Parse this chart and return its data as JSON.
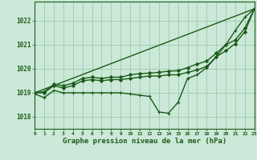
{
  "background_color": "#cce8d8",
  "grid_color": "#99ccaa",
  "line_color": "#1a5c1a",
  "marker_color": "#1a5c1a",
  "xlabel": "Graphe pression niveau de la mer (hPa)",
  "xlabel_fontsize": 6.5,
  "xlim": [
    0,
    23
  ],
  "ylim": [
    1017.5,
    1022.8
  ],
  "yticks": [
    1018,
    1019,
    1020,
    1021,
    1022
  ],
  "xticks": [
    0,
    1,
    2,
    3,
    4,
    5,
    6,
    7,
    8,
    9,
    10,
    11,
    12,
    13,
    14,
    15,
    16,
    17,
    18,
    19,
    20,
    21,
    22,
    23
  ],
  "series": [
    {
      "x": [
        0,
        1,
        2,
        3,
        4,
        5,
        6,
        7,
        8,
        9,
        10,
        11,
        12,
        13,
        14,
        15,
        16,
        17,
        18,
        19,
        20,
        21,
        22,
        23
      ],
      "y": [
        1018.95,
        1018.8,
        1019.1,
        1019.0,
        1019.0,
        1019.0,
        1019.0,
        1019.0,
        1019.0,
        1019.0,
        1018.95,
        1018.9,
        1018.85,
        1018.2,
        1018.15,
        1018.6,
        1019.6,
        1019.75,
        1020.05,
        1020.5,
        1021.0,
        1021.6,
        1022.15,
        1022.5
      ],
      "marker": "+",
      "markersize": 3.5,
      "linewidth": 1.0,
      "linestyle": "-"
    },
    {
      "x": [
        0,
        1,
        2,
        3,
        4,
        5,
        6,
        7,
        8,
        9,
        10,
        11,
        12,
        13,
        14,
        15,
        16,
        17,
        18,
        19,
        20,
        21,
        22,
        23
      ],
      "y": [
        1019.0,
        1019.0,
        1019.3,
        1019.2,
        1019.3,
        1019.5,
        1019.55,
        1019.5,
        1019.55,
        1019.55,
        1019.6,
        1019.65,
        1019.7,
        1019.7,
        1019.75,
        1019.75,
        1019.85,
        1019.95,
        1020.1,
        1020.5,
        1020.75,
        1021.05,
        1021.55,
        1022.5
      ],
      "marker": "D",
      "markersize": 2.0,
      "linewidth": 1.0,
      "linestyle": "-"
    },
    {
      "x": [
        0,
        1,
        2,
        3,
        4,
        5,
        6,
        7,
        8,
        9,
        10,
        11,
        12,
        13,
        14,
        15,
        16,
        17,
        18,
        19,
        20,
        21,
        22,
        23
      ],
      "y": [
        1019.0,
        1019.05,
        1019.35,
        1019.3,
        1019.4,
        1019.6,
        1019.65,
        1019.6,
        1019.65,
        1019.65,
        1019.75,
        1019.8,
        1019.82,
        1019.85,
        1019.9,
        1019.92,
        1020.05,
        1020.2,
        1020.32,
        1020.65,
        1021.0,
        1021.2,
        1021.7,
        1022.5
      ],
      "marker": "D",
      "markersize": 2.0,
      "linewidth": 1.0,
      "linestyle": "-"
    },
    {
      "x": [
        0,
        23
      ],
      "y": [
        1019.0,
        1022.5
      ],
      "marker": null,
      "markersize": 0,
      "linewidth": 1.0,
      "linestyle": "-"
    }
  ]
}
